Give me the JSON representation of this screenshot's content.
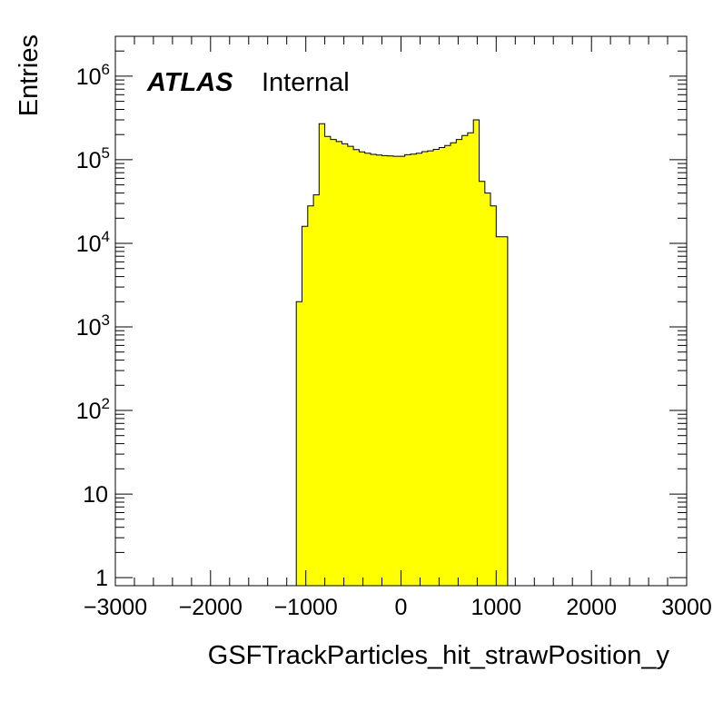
{
  "chart_data": {
    "type": "histogram",
    "title": "",
    "xlabel": "GSFTrackParticles_hit_strawPosition_y",
    "ylabel": "Entries",
    "xlim": [
      -3000,
      3000
    ],
    "ylim": [
      0.8,
      3000000
    ],
    "yscale": "log",
    "grid": false,
    "legend": "none",
    "fill_color": "#ffff00",
    "line_color": "#000000",
    "x_ticks": [
      "−3000",
      "−2000",
      "−1000",
      "0",
      "1000",
      "2000",
      "3000"
    ],
    "y_ticks": [
      {
        "base": "1",
        "exp": ""
      },
      {
        "base": "10",
        "exp": ""
      },
      {
        "base": "10",
        "exp": "2"
      },
      {
        "base": "10",
        "exp": "3"
      },
      {
        "base": "10",
        "exp": "4"
      },
      {
        "base": "10",
        "exp": "5"
      },
      {
        "base": "10",
        "exp": "6"
      }
    ],
    "bin_edges": [
      -1100,
      -1040,
      -980,
      -920,
      -860,
      -800,
      -740,
      -680,
      -620,
      -560,
      -500,
      -440,
      -380,
      -320,
      -260,
      -200,
      -140,
      -80,
      -20,
      40,
      100,
      160,
      220,
      280,
      340,
      400,
      460,
      520,
      580,
      640,
      700,
      760,
      820,
      880,
      940,
      1000,
      1060,
      1120
    ],
    "values": [
      2000,
      16000,
      28000,
      38000,
      270000,
      190000,
      175000,
      165000,
      155000,
      145000,
      132000,
      124000,
      120000,
      116000,
      114000,
      112000,
      111000,
      110000,
      110000,
      115000,
      117000,
      120000,
      125000,
      128000,
      133000,
      140000,
      148000,
      160000,
      175000,
      195000,
      210000,
      300000,
      55000,
      40000,
      28000,
      12000,
      12000
    ],
    "annotations": [
      {
        "label": "ATLAS",
        "suffix": "Internal",
        "position": "top-left"
      }
    ]
  }
}
